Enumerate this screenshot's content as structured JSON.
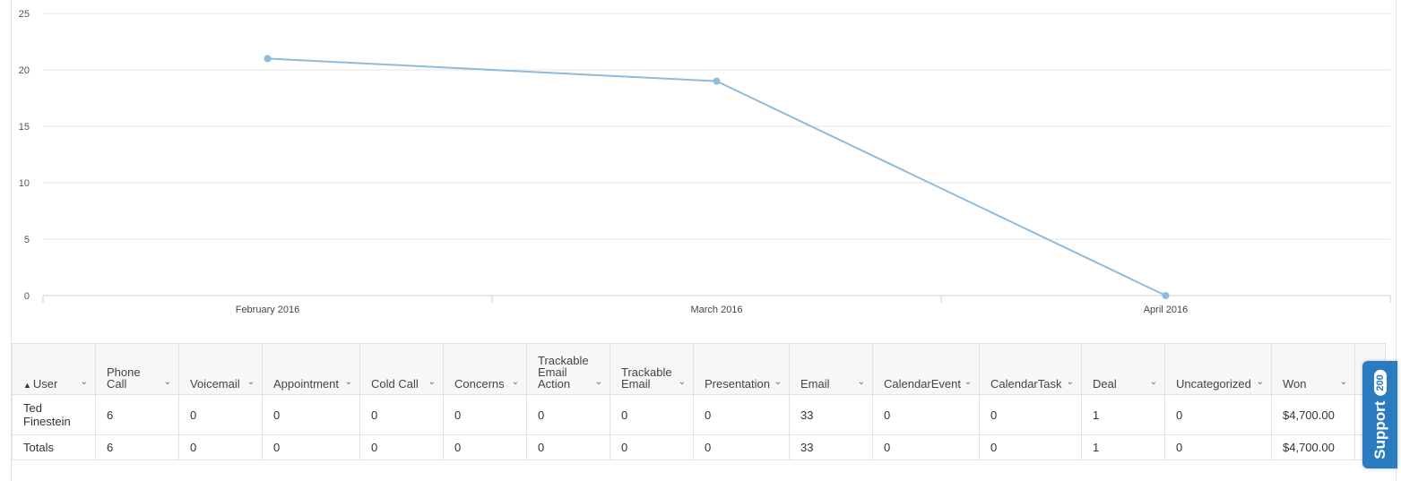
{
  "chart_data": {
    "type": "line",
    "categories": [
      "February 2016",
      "March 2016",
      "April 2016"
    ],
    "series": [
      {
        "values": [
          21,
          19,
          0
        ],
        "color": "#8fbcdc"
      }
    ],
    "ylim": [
      0,
      25
    ],
    "yticks": [
      0,
      5,
      10,
      15,
      20,
      25
    ],
    "grid": true,
    "title": "",
    "xlabel": "",
    "ylabel": ""
  },
  "table": {
    "columns": [
      {
        "label": "User",
        "sorted": "asc"
      },
      {
        "label": "Phone Call"
      },
      {
        "label": "Voicemail"
      },
      {
        "label": "Appointment"
      },
      {
        "label": "Cold Call"
      },
      {
        "label": "Concerns"
      },
      {
        "label": "Trackable Email Action"
      },
      {
        "label": "Trackable Email"
      },
      {
        "label": "Presentation"
      },
      {
        "label": "Email"
      },
      {
        "label": "CalendarEvent"
      },
      {
        "label": "CalendarTask"
      },
      {
        "label": "Deal"
      },
      {
        "label": "Uncategorized"
      },
      {
        "label": "Won"
      }
    ],
    "rows": [
      [
        "Ted Finestein",
        "6",
        "0",
        "0",
        "0",
        "0",
        "0",
        "0",
        "0",
        "33",
        "0",
        "0",
        "1",
        "0",
        "$4,700.00"
      ]
    ],
    "totals": [
      "Totals",
      "6",
      "0",
      "0",
      "0",
      "0",
      "0",
      "0",
      "0",
      "33",
      "0",
      "0",
      "1",
      "0",
      "$4,700.00"
    ]
  },
  "support": {
    "label": "Support",
    "badge": "200"
  }
}
